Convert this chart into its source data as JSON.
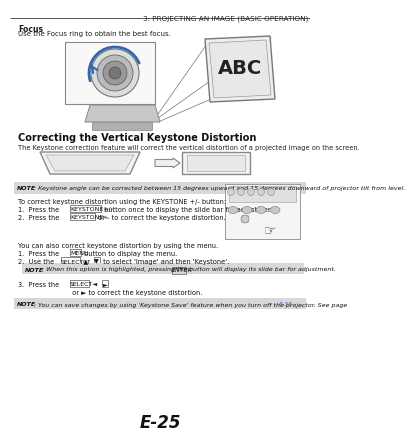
{
  "title": "3. PROJECTING AN IMAGE (BASIC OPERATION)",
  "page_num": "E-25",
  "focus_bold": "Focus",
  "focus_text": "Use the Focus ring to obtain the best focus.",
  "section_title": "Correcting the Vertical Keystone Distortion",
  "section_intro": "The Keystone correction feature will correct the vertical distortion of a projected image on the screen.",
  "note1_bold": "NOTE",
  "note1_text": ": Keystone angle can be corrected between 15 degrees upward and 15 degrees downward of projector tilt from level.",
  "keystone_steps_intro": "To correct keystone distortion using the KEYSTONE +/- button:",
  "keystone_step1_pre": "1.  Press the ",
  "keystone_step1_box": "KEYSTONE+/-",
  "keystone_step1_post": " button once to display the slide bar for adjustment.",
  "keystone_step2_pre": "2.  Press the ",
  "keystone_step2_box": "KEYSTONE+",
  "keystone_step2_post": " or - to correct the keystone distortion.",
  "menu_intro": "You can also correct keystone distortion by using the menu.",
  "menu_step1_pre": "1.  Press the ",
  "menu_step1_box": "MENU",
  "menu_step1_post": " button to display the menu.",
  "menu_step2_pre": "2.  Use the ",
  "menu_step2_box": "SELECT▲",
  "menu_step2_mid": " or ",
  "menu_step2_box2": "▼",
  "menu_step2_post": " to select 'Image' and then 'Keystone'.",
  "menu_note_bold": "NOTE",
  "menu_note_text": ": When this option is highlighted, pressing the ",
  "menu_note_box": "ENTER",
  "menu_note_post": " button will display its slide bar for adjustment.",
  "menu_step3_pre": "3.  Press the ",
  "menu_step3_box": "SELECT◄",
  "menu_step3_mid": " or ",
  "menu_step3_box2": "►",
  "menu_step3_post": " to correct the keystone distortion.",
  "note2_bold": "NOTE",
  "note2_text": ": You can save changes by using 'Keystone Save' feature when you turn off the projector. See page ",
  "note2_link": "E-35",
  "note2_end": ".",
  "bg_color": "#ffffff",
  "text_color": "#1a1a1a",
  "header_line_color": "#555555",
  "note_bg_color": "#e0e0e0",
  "link_color": "#3366cc"
}
